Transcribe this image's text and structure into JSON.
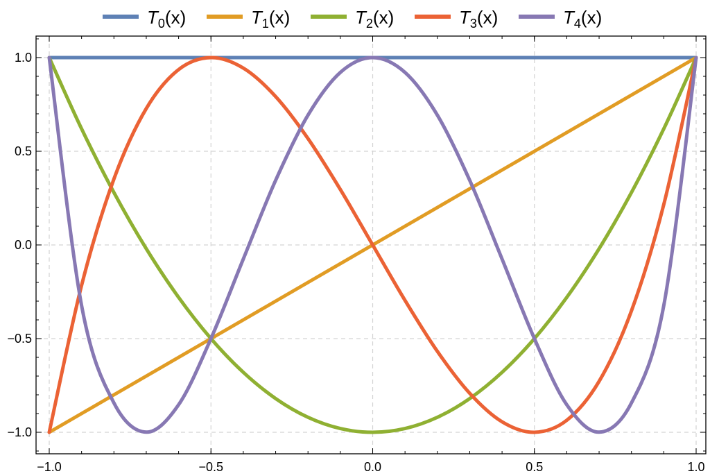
{
  "chart_data": {
    "type": "line",
    "title": "",
    "xlabel": "",
    "ylabel": "",
    "xlim": [
      -1.0,
      1.0
    ],
    "ylim": [
      -1.0,
      1.0
    ],
    "grid": true,
    "legend_position": "top",
    "x_ticks": [
      -1.0,
      -0.5,
      0.0,
      0.5,
      1.0
    ],
    "x_tick_labels": [
      "−1.0",
      "−0.5",
      "0.0",
      "0.5",
      "1.0"
    ],
    "y_ticks": [
      -1.0,
      -0.5,
      0.0,
      0.5,
      1.0
    ],
    "y_tick_labels": [
      "−1.0",
      "−0.5",
      "0.0",
      "0.5",
      "1.0"
    ],
    "x": [
      -1.0,
      -0.9,
      -0.8,
      -0.7,
      -0.6,
      -0.5,
      -0.4,
      -0.3,
      -0.2,
      -0.1,
      0.0,
      0.1,
      0.2,
      0.3,
      0.4,
      0.5,
      0.6,
      0.7,
      0.8,
      0.9,
      1.0
    ],
    "series": [
      {
        "name": "T0(x)",
        "letter": "T",
        "sub": "0",
        "suffix": "(x)",
        "color": "#5e81b5",
        "values": [
          1,
          1,
          1,
          1,
          1,
          1,
          1,
          1,
          1,
          1,
          1,
          1,
          1,
          1,
          1,
          1,
          1,
          1,
          1,
          1,
          1
        ]
      },
      {
        "name": "T1(x)",
        "letter": "T",
        "sub": "1",
        "suffix": "(x)",
        "color": "#e19c24",
        "values": [
          -1.0,
          -0.9,
          -0.8,
          -0.7,
          -0.6,
          -0.5,
          -0.4,
          -0.3,
          -0.2,
          -0.1,
          0.0,
          0.1,
          0.2,
          0.3,
          0.4,
          0.5,
          0.6,
          0.7,
          0.8,
          0.9,
          1.0
        ]
      },
      {
        "name": "T2(x)",
        "letter": "T",
        "sub": "2",
        "suffix": "(x)",
        "color": "#8fb032",
        "values": [
          1.0,
          0.62,
          0.28,
          -0.02,
          -0.28,
          -0.5,
          -0.68,
          -0.82,
          -0.92,
          -0.98,
          -1.0,
          -0.98,
          -0.92,
          -0.82,
          -0.68,
          -0.5,
          -0.28,
          -0.02,
          0.28,
          0.62,
          1.0
        ]
      },
      {
        "name": "T3(x)",
        "letter": "T",
        "sub": "3",
        "suffix": "(x)",
        "color": "#eb6235",
        "values": [
          -1.0,
          -0.216,
          0.352,
          0.728,
          0.936,
          1.0,
          0.944,
          0.792,
          0.568,
          0.296,
          0.0,
          -0.296,
          -0.568,
          -0.792,
          -0.944,
          -1.0,
          -0.936,
          -0.728,
          -0.352,
          0.216,
          1.0
        ]
      },
      {
        "name": "T4(x)",
        "letter": "T",
        "sub": "4",
        "suffix": "(x)",
        "color": "#8778b3",
        "values": [
          1.0,
          -0.3232,
          -0.8432,
          -0.9992,
          -0.8528,
          -0.5,
          -0.0752,
          0.3448,
          0.6928,
          0.9208,
          1.0,
          0.9208,
          0.6928,
          0.3448,
          -0.0752,
          -0.5,
          -0.8528,
          -0.9992,
          -0.8432,
          -0.3232,
          1.0
        ]
      }
    ]
  }
}
